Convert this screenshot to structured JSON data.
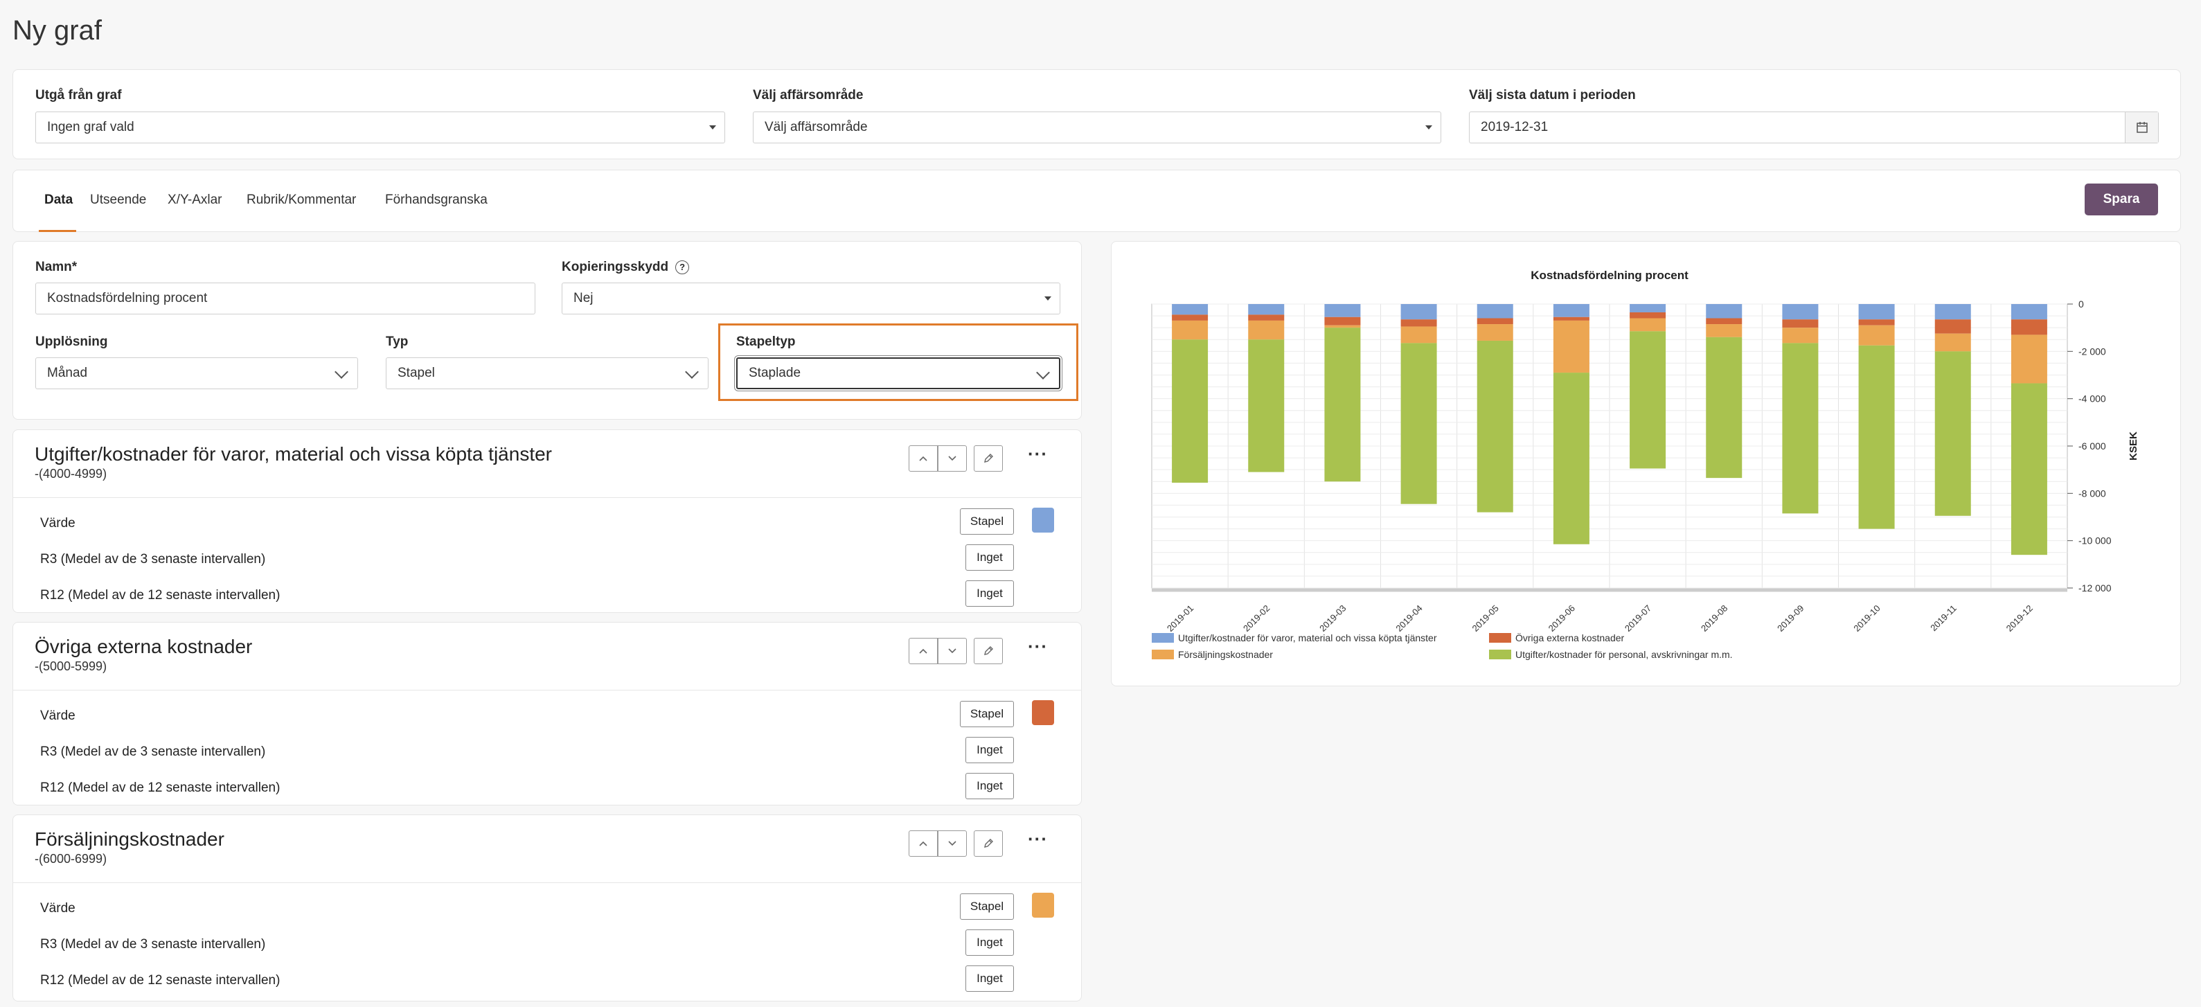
{
  "page": {
    "title": "Ny graf"
  },
  "top_filters": {
    "graph": {
      "label": "Utgå från graf",
      "value": "Ingen graf vald"
    },
    "area": {
      "label": "Välj affärsområde",
      "value": "Välj affärsområde"
    },
    "date": {
      "label": "Välj sista datum i perioden",
      "value": "2019-12-31"
    }
  },
  "tabs": [
    {
      "label": "Data",
      "active": true
    },
    {
      "label": "Utseende",
      "active": false
    },
    {
      "label": "X/Y-Axlar",
      "active": false
    },
    {
      "label": "Rubrik/Kommentar",
      "active": false
    },
    {
      "label": "Förhandsgranska",
      "active": false
    }
  ],
  "save_label": "Spara",
  "form": {
    "name": {
      "label": "Namn*",
      "value": "Kostnadsfördelning procent"
    },
    "copy": {
      "label": "Kopieringsskydd",
      "value": "Nej"
    },
    "resolution": {
      "label": "Upplösning",
      "value": "Månad"
    },
    "type": {
      "label": "Typ",
      "value": "Stapel"
    },
    "bartype": {
      "label": "Stapeltyp",
      "value": "Staplade"
    }
  },
  "sections": [
    {
      "title": "Utgifter/kostnader för varor, material och vissa köpta tjänster",
      "range": "-(4000-4999)",
      "color": "#7fa3d9",
      "rows": [
        {
          "label": "Värde",
          "button": "Stapel"
        },
        {
          "label": "R3 (Medel av de 3 senaste intervallen)",
          "button": "Inget"
        },
        {
          "label": "R12 (Medel av de 12 senaste intervallen)",
          "button": "Inget"
        }
      ]
    },
    {
      "title": "Övriga externa kostnader",
      "range": "-(5000-5999)",
      "color": "#d3673a",
      "rows": [
        {
          "label": "Värde",
          "button": "Stapel"
        },
        {
          "label": "R3 (Medel av de 3 senaste intervallen)",
          "button": "Inget"
        },
        {
          "label": "R12 (Medel av de 12 senaste intervallen)",
          "button": "Inget"
        }
      ]
    },
    {
      "title": "Försäljningskostnader",
      "range": "-(6000-6999)",
      "color": "#eca652",
      "rows": [
        {
          "label": "Värde",
          "button": "Stapel"
        },
        {
          "label": "R3 (Medel av de 3 senaste intervallen)",
          "button": "Inget"
        },
        {
          "label": "R12 (Medel av de 12 senaste intervallen)",
          "button": "Inget"
        }
      ]
    }
  ],
  "chart_data": {
    "type": "bar",
    "stacked": true,
    "title": "Kostnadsfördelning procent",
    "xlabel": "",
    "ylabel": "KSEK",
    "ylim": [
      -12000,
      0
    ],
    "yticks": [
      0,
      -2000,
      -4000,
      -6000,
      -8000,
      -10000,
      -12000
    ],
    "ytick_labels": [
      "0",
      "-2 000",
      "-4 000",
      "-6 000",
      "-8 000",
      "-10 000",
      "-12 000"
    ],
    "grid": true,
    "legend_position": "bottom",
    "categories": [
      "2019-01",
      "2019-02",
      "2019-03",
      "2019-04",
      "2019-05",
      "2019-06",
      "2019-07",
      "2019-08",
      "2019-09",
      "2019-10",
      "2019-11",
      "2019-12"
    ],
    "series": [
      {
        "name": "Utgifter/kostnader för varor, material och vissa köpta tjänster",
        "color": "#7fa3d9",
        "values": [
          -450,
          -450,
          -550,
          -650,
          -600,
          -550,
          -350,
          -600,
          -650,
          -650,
          -650,
          -650
        ]
      },
      {
        "name": "Övriga externa kostnader",
        "color": "#d3673a",
        "values": [
          -250,
          -250,
          -350,
          -300,
          -250,
          -150,
          -250,
          -250,
          -350,
          -250,
          -600,
          -650
        ]
      },
      {
        "name": "Försäljningskostnader",
        "color": "#eca652",
        "values": [
          -800,
          -800,
          -100,
          -700,
          -700,
          -2200,
          -550,
          -550,
          -650,
          -850,
          -750,
          -2050
        ]
      },
      {
        "name": "Utgifter/kostnader för personal, avskrivningar m.m.",
        "color": "#a9c24f",
        "values": [
          -6050,
          -5600,
          -6500,
          -6800,
          -7250,
          -7250,
          -5800,
          -5950,
          -7200,
          -7750,
          -6950,
          -7250
        ]
      }
    ]
  }
}
